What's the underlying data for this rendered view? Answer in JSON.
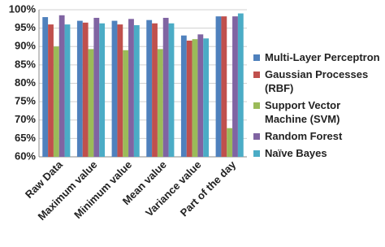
{
  "chart_data": {
    "type": "bar",
    "categories": [
      "Raw Data",
      "Maximum value",
      "Minimum value",
      "Mean value",
      "Variance value",
      "Part of the day"
    ],
    "series": [
      {
        "name": "Multi-Layer Perceptron",
        "color": "#4f81bd",
        "values": [
          98,
          97,
          97,
          97.2,
          93,
          98.2
        ]
      },
      {
        "name": "Gaussian Processes (RBF)",
        "color": "#c0504d",
        "values": [
          96,
          96.5,
          96,
          96.3,
          91.6,
          98.2
        ]
      },
      {
        "name": "Support Vector Machine (SVM)",
        "color": "#9bbb59",
        "values": [
          90,
          89.3,
          89,
          89.3,
          92,
          67.8
        ]
      },
      {
        "name": "Random Forest",
        "color": "#8064a2",
        "values": [
          98.5,
          97.8,
          97.5,
          97.8,
          93.3,
          98.2
        ]
      },
      {
        "name": "Naïve Bayes",
        "color": "#4bacc6",
        "values": [
          96,
          96.3,
          95.8,
          96.3,
          92.2,
          99
        ]
      }
    ],
    "ylim": [
      60,
      100
    ],
    "yticks": [
      {
        "value": 60,
        "label": "60%"
      },
      {
        "value": 65,
        "label": "65%"
      },
      {
        "value": 70,
        "label": "70%"
      },
      {
        "value": 75,
        "label": "75%"
      },
      {
        "value": 80,
        "label": "80%"
      },
      {
        "value": 85,
        "label": "85%"
      },
      {
        "value": 90,
        "label": "90%"
      },
      {
        "value": 95,
        "label": "95%"
      },
      {
        "value": 100,
        "label": "100%"
      }
    ],
    "grid": true
  }
}
